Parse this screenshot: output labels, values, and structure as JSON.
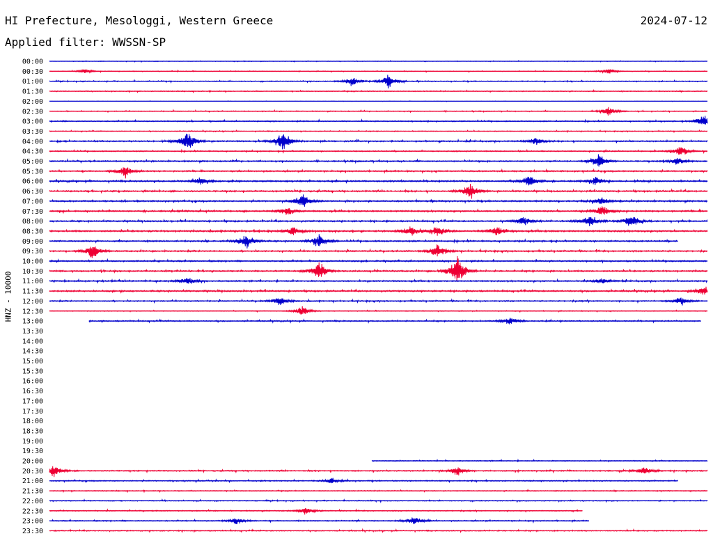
{
  "header": {
    "station": "HI Prefecture, Mesologgi, Western Greece",
    "date": "2024-07-12",
    "filter": "Applied filter: WWSSN-SP"
  },
  "chart_data": {
    "type": "line",
    "ylabel": "HNZ - 10000",
    "colors": {
      "even": "#0000cc",
      "odd": "#ee0033"
    },
    "rows": [
      {
        "time": "00:00",
        "start": 0.0,
        "end": 1.0,
        "level": 0.18,
        "events": []
      },
      {
        "time": "00:30",
        "start": 0.0,
        "end": 1.0,
        "level": 0.22,
        "events": [
          [
            0.055,
            0.3
          ],
          [
            0.85,
            0.35
          ]
        ]
      },
      {
        "time": "01:00",
        "start": 0.0,
        "end": 1.0,
        "level": 0.3,
        "events": [
          [
            0.46,
            0.6
          ],
          [
            0.515,
            0.9
          ]
        ]
      },
      {
        "time": "01:30",
        "start": 0.0,
        "end": 1.0,
        "level": 0.3,
        "events": []
      },
      {
        "time": "02:00",
        "start": 0.0,
        "end": 1.0,
        "level": 0.1,
        "events": []
      },
      {
        "time": "02:30",
        "start": 0.0,
        "end": 1.0,
        "level": 0.28,
        "events": [
          [
            0.85,
            0.6
          ]
        ]
      },
      {
        "time": "03:00",
        "start": 0.0,
        "end": 1.0,
        "level": 0.35,
        "events": [
          [
            0.995,
            0.8
          ]
        ]
      },
      {
        "time": "03:30",
        "start": 0.0,
        "end": 1.0,
        "level": 0.25,
        "events": []
      },
      {
        "time": "04:00",
        "start": 0.0,
        "end": 1.0,
        "level": 0.45,
        "events": [
          [
            0.21,
            1.5
          ],
          [
            0.355,
            1.4
          ],
          [
            0.74,
            0.5
          ]
        ]
      },
      {
        "time": "04:30",
        "start": 0.0,
        "end": 1.0,
        "level": 0.35,
        "events": [
          [
            0.96,
            0.7
          ]
        ]
      },
      {
        "time": "05:00",
        "start": 0.0,
        "end": 1.0,
        "level": 0.45,
        "events": [
          [
            0.835,
            0.9
          ],
          [
            0.955,
            0.5
          ]
        ]
      },
      {
        "time": "05:30",
        "start": 0.0,
        "end": 1.0,
        "level": 0.45,
        "events": [
          [
            0.115,
            0.8
          ]
        ]
      },
      {
        "time": "06:00",
        "start": 0.0,
        "end": 1.0,
        "level": 0.5,
        "events": [
          [
            0.23,
            0.5
          ],
          [
            0.73,
            0.8
          ],
          [
            0.83,
            0.5
          ]
        ]
      },
      {
        "time": "06:30",
        "start": 0.0,
        "end": 1.0,
        "level": 0.5,
        "events": [
          [
            0.64,
            1.0
          ]
        ]
      },
      {
        "time": "07:00",
        "start": 0.0,
        "end": 1.0,
        "level": 0.5,
        "events": [
          [
            0.385,
            0.9
          ],
          [
            0.84,
            0.5
          ]
        ]
      },
      {
        "time": "07:30",
        "start": 0.0,
        "end": 1.0,
        "level": 0.5,
        "events": [
          [
            0.36,
            0.6
          ],
          [
            0.84,
            0.7
          ]
        ]
      },
      {
        "time": "08:00",
        "start": 0.0,
        "end": 1.0,
        "level": 0.5,
        "events": [
          [
            0.72,
            0.7
          ],
          [
            0.82,
            0.8
          ],
          [
            0.885,
            0.9
          ]
        ]
      },
      {
        "time": "08:30",
        "start": 0.0,
        "end": 1.0,
        "level": 0.55,
        "events": [
          [
            0.37,
            0.6
          ],
          [
            0.55,
            0.7
          ],
          [
            0.59,
            0.8
          ],
          [
            0.68,
            0.6
          ]
        ]
      },
      {
        "time": "09:00",
        "start": 0.0,
        "end": 0.955,
        "level": 0.5,
        "events": [
          [
            0.3,
            0.9
          ],
          [
            0.41,
            0.8
          ]
        ]
      },
      {
        "time": "09:30",
        "start": 0.0,
        "end": 1.0,
        "level": 0.45,
        "events": [
          [
            0.065,
            1.0
          ],
          [
            0.59,
            0.9
          ]
        ]
      },
      {
        "time": "10:00",
        "start": 0.0,
        "end": 1.0,
        "level": 0.45,
        "events": []
      },
      {
        "time": "10:30",
        "start": 0.0,
        "end": 1.0,
        "level": 0.5,
        "events": [
          [
            0.41,
            1.3
          ],
          [
            0.62,
            1.9
          ]
        ]
      },
      {
        "time": "11:00",
        "start": 0.0,
        "end": 1.0,
        "level": 0.45,
        "events": [
          [
            0.21,
            0.5
          ],
          [
            0.84,
            0.4
          ]
        ]
      },
      {
        "time": "11:30",
        "start": 0.0,
        "end": 1.0,
        "level": 0.5,
        "events": [
          [
            0.995,
            0.6
          ]
        ]
      },
      {
        "time": "12:00",
        "start": 0.0,
        "end": 1.0,
        "level": 0.4,
        "events": [
          [
            0.35,
            0.6
          ],
          [
            0.96,
            0.5
          ]
        ]
      },
      {
        "time": "12:30",
        "start": 0.0,
        "end": 1.0,
        "level": 0.25,
        "events": [
          [
            0.385,
            0.7
          ]
        ]
      },
      {
        "time": "13:00",
        "start": 0.06,
        "end": 0.99,
        "level": 0.4,
        "events": [
          [
            0.7,
            0.5
          ]
        ]
      },
      {
        "time": "13:30",
        "start": 0,
        "end": 0,
        "level": 0,
        "events": []
      },
      {
        "time": "14:00",
        "start": 0,
        "end": 0,
        "level": 0,
        "events": []
      },
      {
        "time": "14:30",
        "start": 0,
        "end": 0,
        "level": 0,
        "events": []
      },
      {
        "time": "15:00",
        "start": 0,
        "end": 0,
        "level": 0,
        "events": []
      },
      {
        "time": "15:30",
        "start": 0,
        "end": 0,
        "level": 0,
        "events": []
      },
      {
        "time": "16:00",
        "start": 0,
        "end": 0,
        "level": 0,
        "events": []
      },
      {
        "time": "16:30",
        "start": 0,
        "end": 0,
        "level": 0,
        "events": []
      },
      {
        "time": "17:00",
        "start": 0,
        "end": 0,
        "level": 0,
        "events": []
      },
      {
        "time": "17:30",
        "start": 0,
        "end": 0,
        "level": 0,
        "events": []
      },
      {
        "time": "18:00",
        "start": 0,
        "end": 0,
        "level": 0,
        "events": []
      },
      {
        "time": "18:30",
        "start": 0,
        "end": 0,
        "level": 0,
        "events": []
      },
      {
        "time": "19:00",
        "start": 0,
        "end": 0,
        "level": 0,
        "events": []
      },
      {
        "time": "19:30",
        "start": 0,
        "end": 0,
        "level": 0,
        "events": []
      },
      {
        "time": "20:00",
        "start": 0.49,
        "end": 1.0,
        "level": 0.3,
        "events": []
      },
      {
        "time": "20:30",
        "start": 0.0,
        "end": 1.0,
        "level": 0.4,
        "events": [
          [
            0.005,
            0.8
          ],
          [
            0.62,
            0.6
          ],
          [
            0.905,
            0.5
          ]
        ]
      },
      {
        "time": "21:00",
        "start": 0.0,
        "end": 0.955,
        "level": 0.35,
        "events": [
          [
            0.43,
            0.4
          ]
        ]
      },
      {
        "time": "21:30",
        "start": 0.0,
        "end": 1.0,
        "level": 0.3,
        "events": []
      },
      {
        "time": "22:00",
        "start": 0.0,
        "end": 1.0,
        "level": 0.3,
        "events": []
      },
      {
        "time": "22:30",
        "start": 0.0,
        "end": 0.81,
        "level": 0.3,
        "events": [
          [
            0.39,
            0.5
          ]
        ]
      },
      {
        "time": "23:00",
        "start": 0.0,
        "end": 0.82,
        "level": 0.35,
        "events": [
          [
            0.555,
            0.6
          ],
          [
            0.285,
            0.5
          ]
        ]
      },
      {
        "time": "23:30",
        "start": 0.0,
        "end": 1.0,
        "level": 0.35,
        "events": []
      }
    ]
  }
}
